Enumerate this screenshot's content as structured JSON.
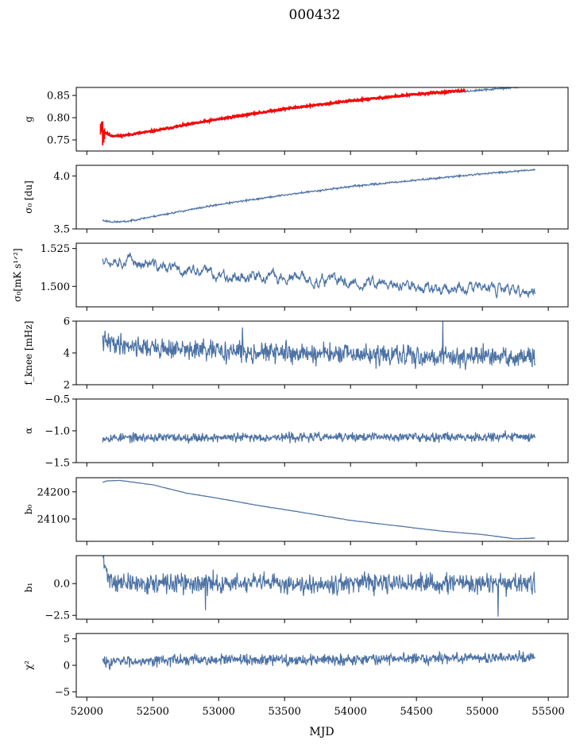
{
  "chart_data": {
    "type": "line",
    "title": "000432",
    "xlabel": "MJD",
    "xlim": [
      51920,
      55650
    ],
    "xticks": [
      52000,
      52500,
      53000,
      53500,
      54000,
      54500,
      55000,
      55500
    ],
    "x_range": [
      52120,
      55400
    ],
    "line_color": "#4c72a4",
    "overlay_color": "#ff0000",
    "panels": [
      {
        "id": "g",
        "ylabel": "g",
        "ylim": [
          0.725,
          0.868
        ],
        "yticks": [
          0.75,
          0.8,
          0.85
        ],
        "tick_labels": [
          "0.75",
          "0.80",
          "0.85"
        ],
        "trend": [
          [
            52120,
            0.768
          ],
          [
            52180,
            0.758
          ],
          [
            52250,
            0.757
          ],
          [
            52500,
            0.768
          ],
          [
            52750,
            0.782
          ],
          [
            53000,
            0.795
          ],
          [
            53500,
            0.818
          ],
          [
            54000,
            0.836
          ],
          [
            54500,
            0.851
          ],
          [
            55000,
            0.862
          ],
          [
            55400,
            0.872
          ]
        ],
        "noise": 0.0015,
        "seed": 11,
        "overlay": {
          "series": "red",
          "x_end": 54870,
          "offset": 0.002,
          "spike": {
            "x": 52120,
            "min": 0.738,
            "max": 0.792
          }
        }
      },
      {
        "id": "sigma0",
        "ylabel": "σ₀ [du]",
        "ylim": [
          3.5,
          4.1
        ],
        "yticks": [
          3.5,
          4.0
        ],
        "tick_labels": [
          "3.5",
          "4.0"
        ],
        "trend": [
          [
            52120,
            3.58
          ],
          [
            52200,
            3.565
          ],
          [
            52300,
            3.57
          ],
          [
            52600,
            3.64
          ],
          [
            53000,
            3.73
          ],
          [
            53500,
            3.82
          ],
          [
            54000,
            3.9
          ],
          [
            54500,
            3.96
          ],
          [
            55000,
            4.02
          ],
          [
            55400,
            4.06
          ]
        ],
        "noise": 0.006,
        "seed": 23
      },
      {
        "id": "sigma0t",
        "ylabel": "σ₀[mK s¹ᐟ²]",
        "ylim": [
          1.4865,
          1.5285
        ],
        "yticks": [
          1.5,
          1.525
        ],
        "tick_labels": [
          "1.500",
          "1.525"
        ],
        "trend": [
          [
            52120,
            1.5195
          ],
          [
            52300,
            1.5175
          ],
          [
            52600,
            1.512
          ],
          [
            53000,
            1.508
          ],
          [
            53500,
            1.505
          ],
          [
            54000,
            1.503
          ],
          [
            54500,
            1.4995
          ],
          [
            55000,
            1.4985
          ],
          [
            55400,
            1.4955
          ]
        ],
        "noise": 0.0012,
        "smooth": 0.25,
        "seed": 37
      },
      {
        "id": "fknee",
        "ylabel": "f_knee [mHz]",
        "ylim": [
          2,
          6
        ],
        "yticks": [
          2,
          4,
          6
        ],
        "tick_labels": [
          "2",
          "4",
          "6"
        ],
        "trend": [
          [
            52120,
            4.7
          ],
          [
            52500,
            4.3
          ],
          [
            53000,
            4.1
          ],
          [
            53500,
            4.0
          ],
          [
            54000,
            3.9
          ],
          [
            54500,
            3.8
          ],
          [
            55400,
            3.7
          ]
        ],
        "noise": 0.45,
        "spikes": [
          [
            54700,
            6.0
          ],
          [
            53180,
            5.6
          ],
          [
            52140,
            5.4
          ]
        ],
        "seed": 41
      },
      {
        "id": "alpha",
        "ylabel": "α",
        "ylim": [
          -1.5,
          -0.5
        ],
        "yticks": [
          -1.5,
          -1.0,
          -0.5
        ],
        "tick_labels": [
          "−1.5",
          "−1.0",
          "−0.5"
        ],
        "trend": [
          [
            52120,
            -1.11
          ],
          [
            55400,
            -1.09
          ]
        ],
        "noise": 0.05,
        "seed": 53
      },
      {
        "id": "b0",
        "ylabel": "b₀",
        "ylim": [
          24018,
          24252
        ],
        "yticks": [
          24100,
          24200
        ],
        "tick_labels": [
          "24100",
          "24200"
        ],
        "trend": [
          [
            52120,
            24235
          ],
          [
            52150,
            24240
          ],
          [
            52250,
            24242
          ],
          [
            52500,
            24226
          ],
          [
            52750,
            24196
          ],
          [
            53000,
            24176
          ],
          [
            53300,
            24150
          ],
          [
            53600,
            24127
          ],
          [
            54000,
            24095
          ],
          [
            54300,
            24078
          ],
          [
            54700,
            24055
          ],
          [
            55000,
            24043
          ],
          [
            55250,
            24027
          ],
          [
            55400,
            24030
          ]
        ],
        "noise": 0.6,
        "seed": 61
      },
      {
        "id": "b1",
        "ylabel": "b₁",
        "ylim": [
          -2.8,
          2.2
        ],
        "yticks": [
          -2.5,
          0.0
        ],
        "tick_labels": [
          "−2.5",
          "0.0"
        ],
        "trend": [
          [
            52120,
            0.0
          ],
          [
            55400,
            0.0
          ]
        ],
        "noise": 0.55,
        "decay": {
          "amp": 2.1,
          "tau": 35
        },
        "spikes": [
          [
            55120,
            -2.6
          ],
          [
            52900,
            -2.1
          ]
        ],
        "seed": 71
      },
      {
        "id": "chi2",
        "ylabel": "χ²",
        "ylim": [
          -6,
          6
        ],
        "yticks": [
          -5,
          0,
          5
        ],
        "tick_labels": [
          "−5",
          "0",
          "5"
        ],
        "trend": [
          [
            52120,
            0.6
          ],
          [
            52500,
            1.0
          ],
          [
            53500,
            1.0
          ],
          [
            54500,
            1.3
          ],
          [
            55400,
            1.6
          ]
        ],
        "noise": 0.75,
        "seed": 83
      }
    ]
  }
}
